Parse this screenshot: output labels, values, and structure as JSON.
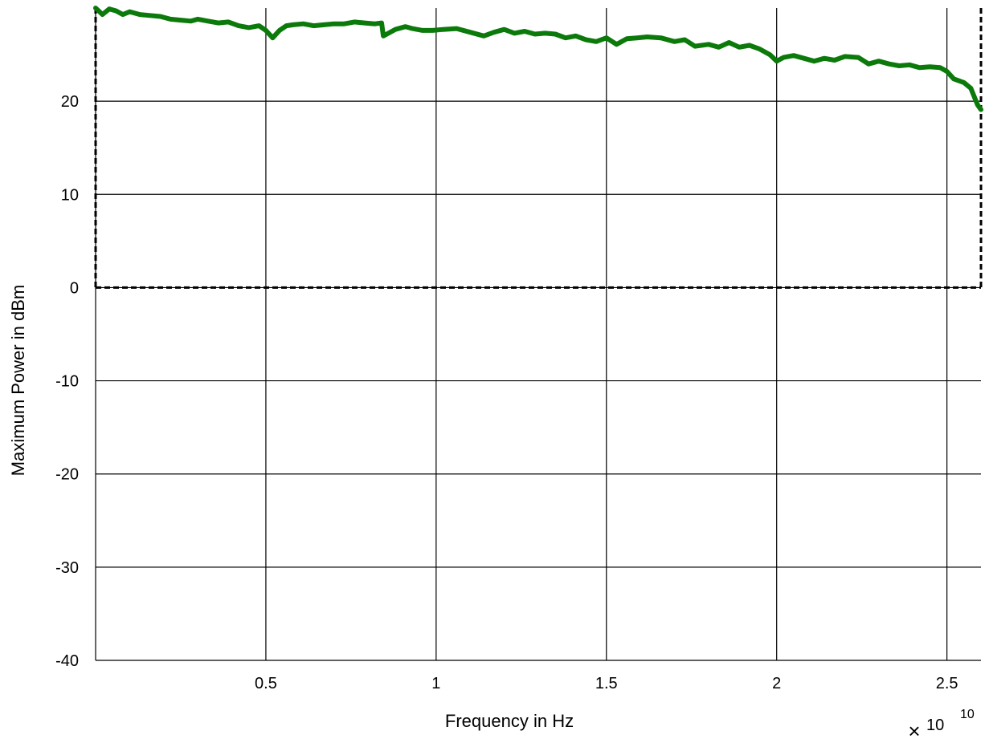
{
  "chart_data": {
    "type": "line",
    "xlabel": "Frequency in Hz",
    "ylabel": "Maximum Power in dBm",
    "x_exponent_label": {
      "base": "10",
      "exponent": "10"
    },
    "xlim": [
      0.0,
      2.6
    ],
    "ylim": [
      -40,
      30
    ],
    "xticks": [
      0.5,
      1,
      1.5,
      2,
      2.5
    ],
    "xtick_labels": [
      "0.5",
      "1",
      "1.5",
      "2",
      "2.5"
    ],
    "yticks": [
      20,
      10,
      0,
      -10,
      -20,
      -30,
      -40
    ],
    "ytick_labels": [
      "20",
      "10",
      "0",
      "-10",
      "-20",
      "-30",
      "-40"
    ],
    "grid": true,
    "limit_box": {
      "x": [
        0.0,
        2.6
      ],
      "y": [
        0,
        30
      ],
      "color": "#000000",
      "style": "dashed"
    },
    "series": [
      {
        "color": "#0b7a0b",
        "x": [
          0.0,
          0.02,
          0.04,
          0.06,
          0.08,
          0.1,
          0.13,
          0.16,
          0.19,
          0.22,
          0.25,
          0.28,
          0.3,
          0.33,
          0.36,
          0.39,
          0.42,
          0.45,
          0.48,
          0.5,
          0.52,
          0.54,
          0.56,
          0.58,
          0.61,
          0.64,
          0.67,
          0.7,
          0.73,
          0.76,
          0.79,
          0.82,
          0.84,
          0.845,
          0.86,
          0.88,
          0.91,
          0.93,
          0.96,
          0.99,
          1.02,
          1.06,
          1.1,
          1.14,
          1.17,
          1.2,
          1.23,
          1.26,
          1.29,
          1.32,
          1.35,
          1.38,
          1.41,
          1.44,
          1.47,
          1.5,
          1.53,
          1.56,
          1.59,
          1.62,
          1.66,
          1.7,
          1.73,
          1.76,
          1.8,
          1.83,
          1.86,
          1.89,
          1.92,
          1.95,
          1.98,
          2.0,
          2.02,
          2.05,
          2.08,
          2.11,
          2.14,
          2.17,
          2.2,
          2.24,
          2.27,
          2.3,
          2.33,
          2.36,
          2.39,
          2.42,
          2.45,
          2.48,
          2.5,
          2.52,
          2.55,
          2.57,
          2.59,
          2.6
        ],
        "y": [
          30.0,
          29.3,
          29.9,
          29.7,
          29.3,
          29.6,
          29.3,
          29.2,
          29.1,
          28.8,
          28.7,
          28.6,
          28.8,
          28.6,
          28.4,
          28.5,
          28.1,
          27.9,
          28.1,
          27.6,
          26.8,
          27.6,
          28.1,
          28.2,
          28.3,
          28.1,
          28.2,
          28.3,
          28.3,
          28.5,
          28.4,
          28.3,
          28.4,
          27.0,
          27.3,
          27.7,
          28.0,
          27.8,
          27.6,
          27.6,
          27.7,
          27.8,
          27.4,
          27.0,
          27.4,
          27.7,
          27.3,
          27.5,
          27.2,
          27.3,
          27.2,
          26.8,
          27.0,
          26.6,
          26.4,
          26.8,
          26.1,
          26.7,
          26.8,
          26.9,
          26.8,
          26.4,
          26.6,
          25.9,
          26.1,
          25.8,
          26.3,
          25.8,
          26.0,
          25.6,
          25.0,
          24.3,
          24.7,
          24.9,
          24.6,
          24.3,
          24.6,
          24.4,
          24.8,
          24.7,
          24.0,
          24.3,
          24.0,
          23.8,
          23.9,
          23.6,
          23.7,
          23.6,
          23.2,
          22.4,
          22.0,
          21.4,
          19.6,
          19.1
        ]
      }
    ]
  }
}
